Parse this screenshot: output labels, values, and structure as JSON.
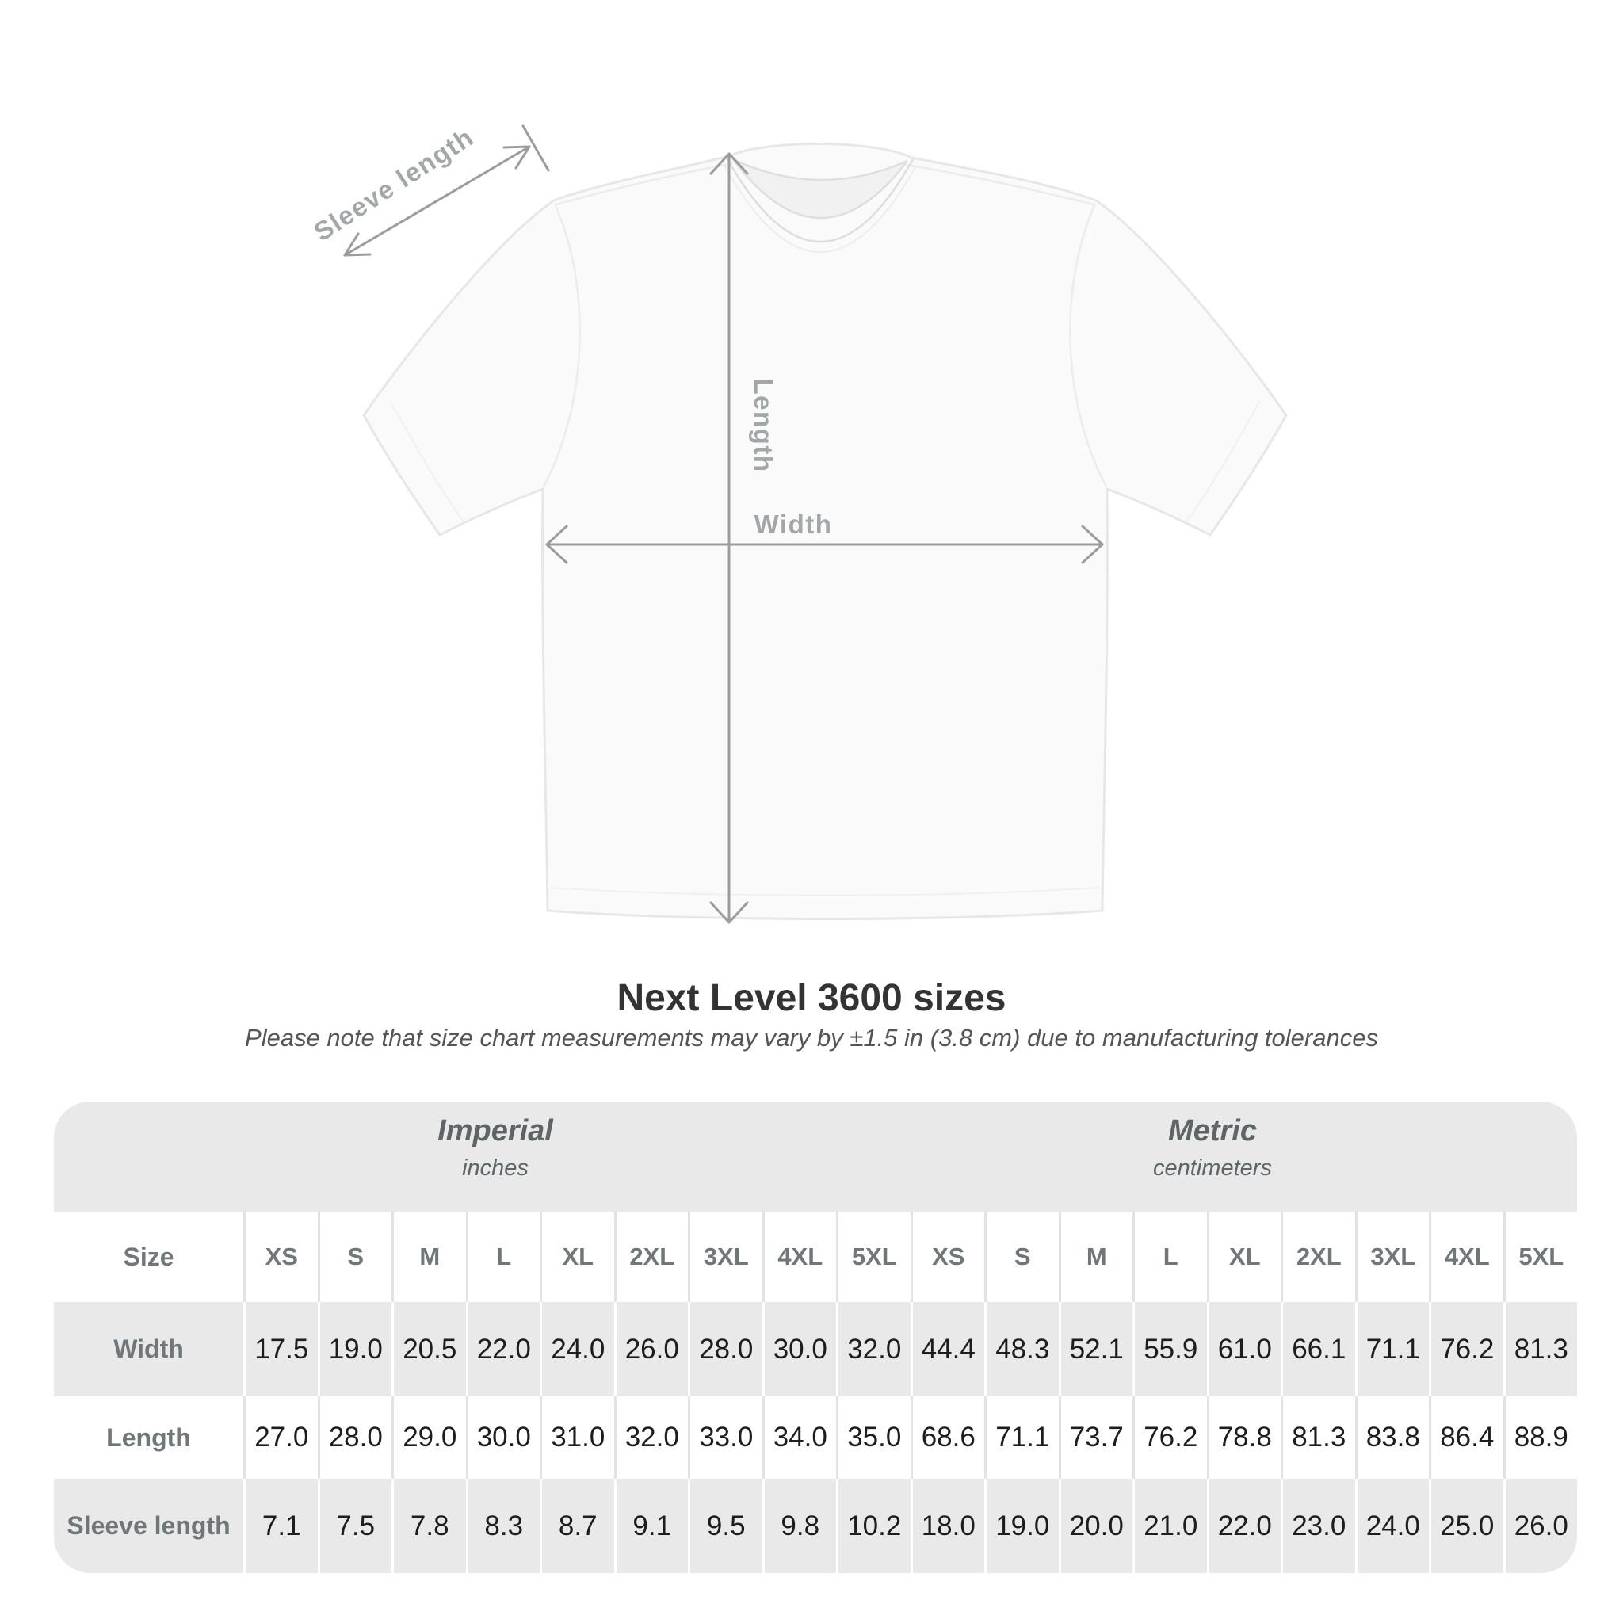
{
  "title": "Next Level 3600 sizes",
  "subtitle": "Please note that size chart measurements may vary by ±1.5 in (3.8 cm) due to manufacturing tolerances",
  "diagram": {
    "sleeve_label": "Sleeve length",
    "length_label": "Length",
    "width_label": "Width"
  },
  "table": {
    "sections": [
      {
        "name": "Imperial",
        "unit": "inches"
      },
      {
        "name": "Metric",
        "unit": "centimeters"
      }
    ],
    "size_header": "Size",
    "sizes": [
      "XS",
      "S",
      "M",
      "L",
      "XL",
      "2XL",
      "3XL",
      "4XL",
      "5XL"
    ],
    "rows": [
      {
        "label": "Width",
        "imperial": [
          "17.5",
          "19.0",
          "20.5",
          "22.0",
          "24.0",
          "26.0",
          "28.0",
          "30.0",
          "32.0"
        ],
        "metric": [
          "44.4",
          "48.3",
          "52.1",
          "55.9",
          "61.0",
          "66.1",
          "71.1",
          "76.2",
          "81.3"
        ]
      },
      {
        "label": "Length",
        "imperial": [
          "27.0",
          "28.0",
          "29.0",
          "30.0",
          "31.0",
          "32.0",
          "33.0",
          "34.0",
          "35.0"
        ],
        "metric": [
          "68.6",
          "71.1",
          "73.7",
          "76.2",
          "78.8",
          "81.3",
          "83.8",
          "86.4",
          "88.9"
        ]
      },
      {
        "label": "Sleeve length",
        "imperial": [
          "7.1",
          "7.5",
          "7.8",
          "8.3",
          "8.7",
          "9.1",
          "9.5",
          "9.8",
          "10.2"
        ],
        "metric": [
          "18.0",
          "19.0",
          "20.0",
          "21.0",
          "22.0",
          "23.0",
          "24.0",
          "25.0",
          "26.0"
        ]
      }
    ]
  },
  "colors": {
    "band_gray": "#e9e9e9",
    "separator_light": "#e2e2e2",
    "separator_white": "#ffffff",
    "heading_gray": "#5d6569",
    "label_gray": "#6f777b",
    "value_dark": "#1d1d1d",
    "title_dark": "#333333",
    "subtitle_gray": "#555555",
    "measure_gray": "#9c9c9c",
    "measure_label_gray": "#a2a7aa",
    "shirt_fill": "#fafafa",
    "shirt_edge": "#e7e7e7"
  }
}
